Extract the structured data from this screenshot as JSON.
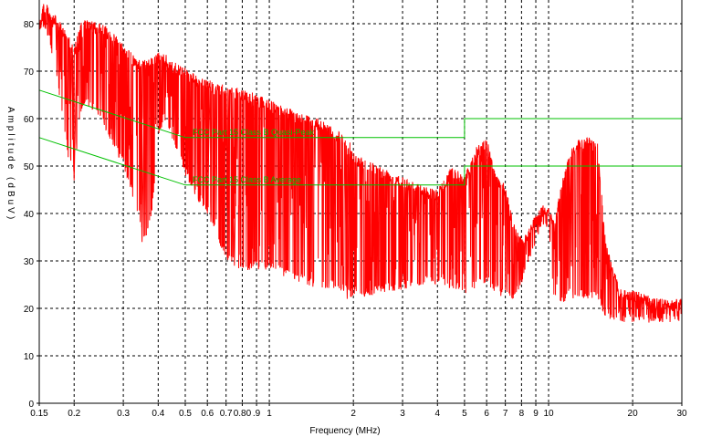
{
  "chart_data": {
    "type": "line",
    "title": "",
    "xlabel": "Frequency (MHz)",
    "ylabel": "Amplitude (dBuV)",
    "xscale": "log",
    "xlim": [
      0.15,
      30
    ],
    "ylim": [
      0,
      85
    ],
    "grid": true,
    "x_ticks": [
      0.15,
      0.2,
      0.3,
      0.4,
      0.5,
      0.6,
      0.7,
      0.8,
      0.9,
      1,
      2,
      3,
      4,
      5,
      6,
      7,
      8,
      9,
      10,
      20,
      30
    ],
    "x_tick_labels": [
      "0.15",
      "0.2",
      "0.3",
      "0.4",
      "0.5",
      "0.6",
      "0.7",
      "0.80",
      ".9",
      "1",
      "2",
      "3",
      "4",
      "5",
      "6",
      "7",
      "8",
      "9",
      "10",
      "20",
      "30"
    ],
    "y_ticks": [
      0,
      10,
      20,
      30,
      40,
      50,
      60,
      70,
      80
    ],
    "y_tick_labels": [
      "0",
      "10",
      "20",
      "30",
      "40",
      "50",
      "60",
      "70",
      "80"
    ],
    "series": [
      {
        "name": "FCC Part 15 Class B Quasi-Peak",
        "color": "#00c000",
        "x": [
          0.15,
          0.5,
          5,
          5,
          30
        ],
        "y": [
          66,
          56,
          56,
          60,
          60
        ]
      },
      {
        "name": "FCC Part 15 Class B  Average",
        "color": "#00c000",
        "x": [
          0.15,
          0.5,
          5,
          5,
          30
        ],
        "y": [
          56,
          46,
          46,
          50,
          50
        ]
      },
      {
        "color": "#ff0000",
        "envelope_x": [
          0.15,
          0.155,
          0.16,
          0.17,
          0.18,
          0.19,
          0.2,
          0.21,
          0.22,
          0.25,
          0.27,
          0.3,
          0.33,
          0.36,
          0.38,
          0.4,
          0.42,
          0.45,
          0.5,
          0.55,
          0.6,
          0.7,
          0.8,
          0.9,
          1.0,
          1.2,
          1.5,
          1.8,
          2.0,
          2.5,
          3.0,
          3.5,
          4.0,
          4.5,
          5.0,
          5.5,
          6.0,
          6.5,
          7.0,
          7.5,
          8.0,
          8.5,
          9.0,
          9.5,
          10.0,
          10.5,
          11.0,
          12.0,
          13.0,
          14.0,
          15.0,
          16.0,
          18.0,
          20.0,
          25.0,
          30.0
        ],
        "envelope_max": [
          80,
          85,
          84,
          82,
          80,
          78,
          75,
          80,
          81,
          80,
          79,
          76,
          73,
          72,
          73,
          74,
          74,
          72,
          71,
          69,
          68,
          67,
          66,
          65,
          64,
          62,
          60,
          57,
          53,
          50,
          48,
          46,
          45,
          50,
          48,
          54,
          56,
          48,
          46,
          38,
          35,
          37,
          40,
          42,
          42,
          38,
          45,
          54,
          56,
          56,
          55,
          34,
          24,
          24,
          22,
          22
        ],
        "envelope_min": [
          78,
          79,
          78,
          70,
          62,
          52,
          47,
          60,
          63,
          60,
          55,
          50,
          42,
          34,
          40,
          55,
          60,
          55,
          48,
          43,
          40,
          30,
          28,
          28,
          28,
          26,
          24,
          24,
          22,
          23,
          24,
          25,
          25,
          24,
          23,
          24,
          25,
          23,
          22,
          22,
          25,
          29,
          34,
          38,
          36,
          21,
          21,
          22,
          22,
          22,
          22,
          18,
          17,
          17,
          17,
          17
        ],
        "notch_points": [
          {
            "x": 0.2,
            "y": 47
          },
          {
            "x": 0.35,
            "y": 34
          },
          {
            "x": 0.6,
            "y": 40
          },
          {
            "x": 0.75,
            "y": 29
          },
          {
            "x": 0.85,
            "y": 29
          },
          {
            "x": 1.9,
            "y": 22
          }
        ]
      }
    ],
    "annotations": [
      {
        "text": "FCC Part 15 Class B Quasi-Peak",
        "x": 0.5,
        "y": 56,
        "color": "#00c000"
      },
      {
        "text": "FCC Part 15 Class B  Average",
        "x": 0.5,
        "y": 46,
        "color": "#00c000"
      }
    ]
  }
}
